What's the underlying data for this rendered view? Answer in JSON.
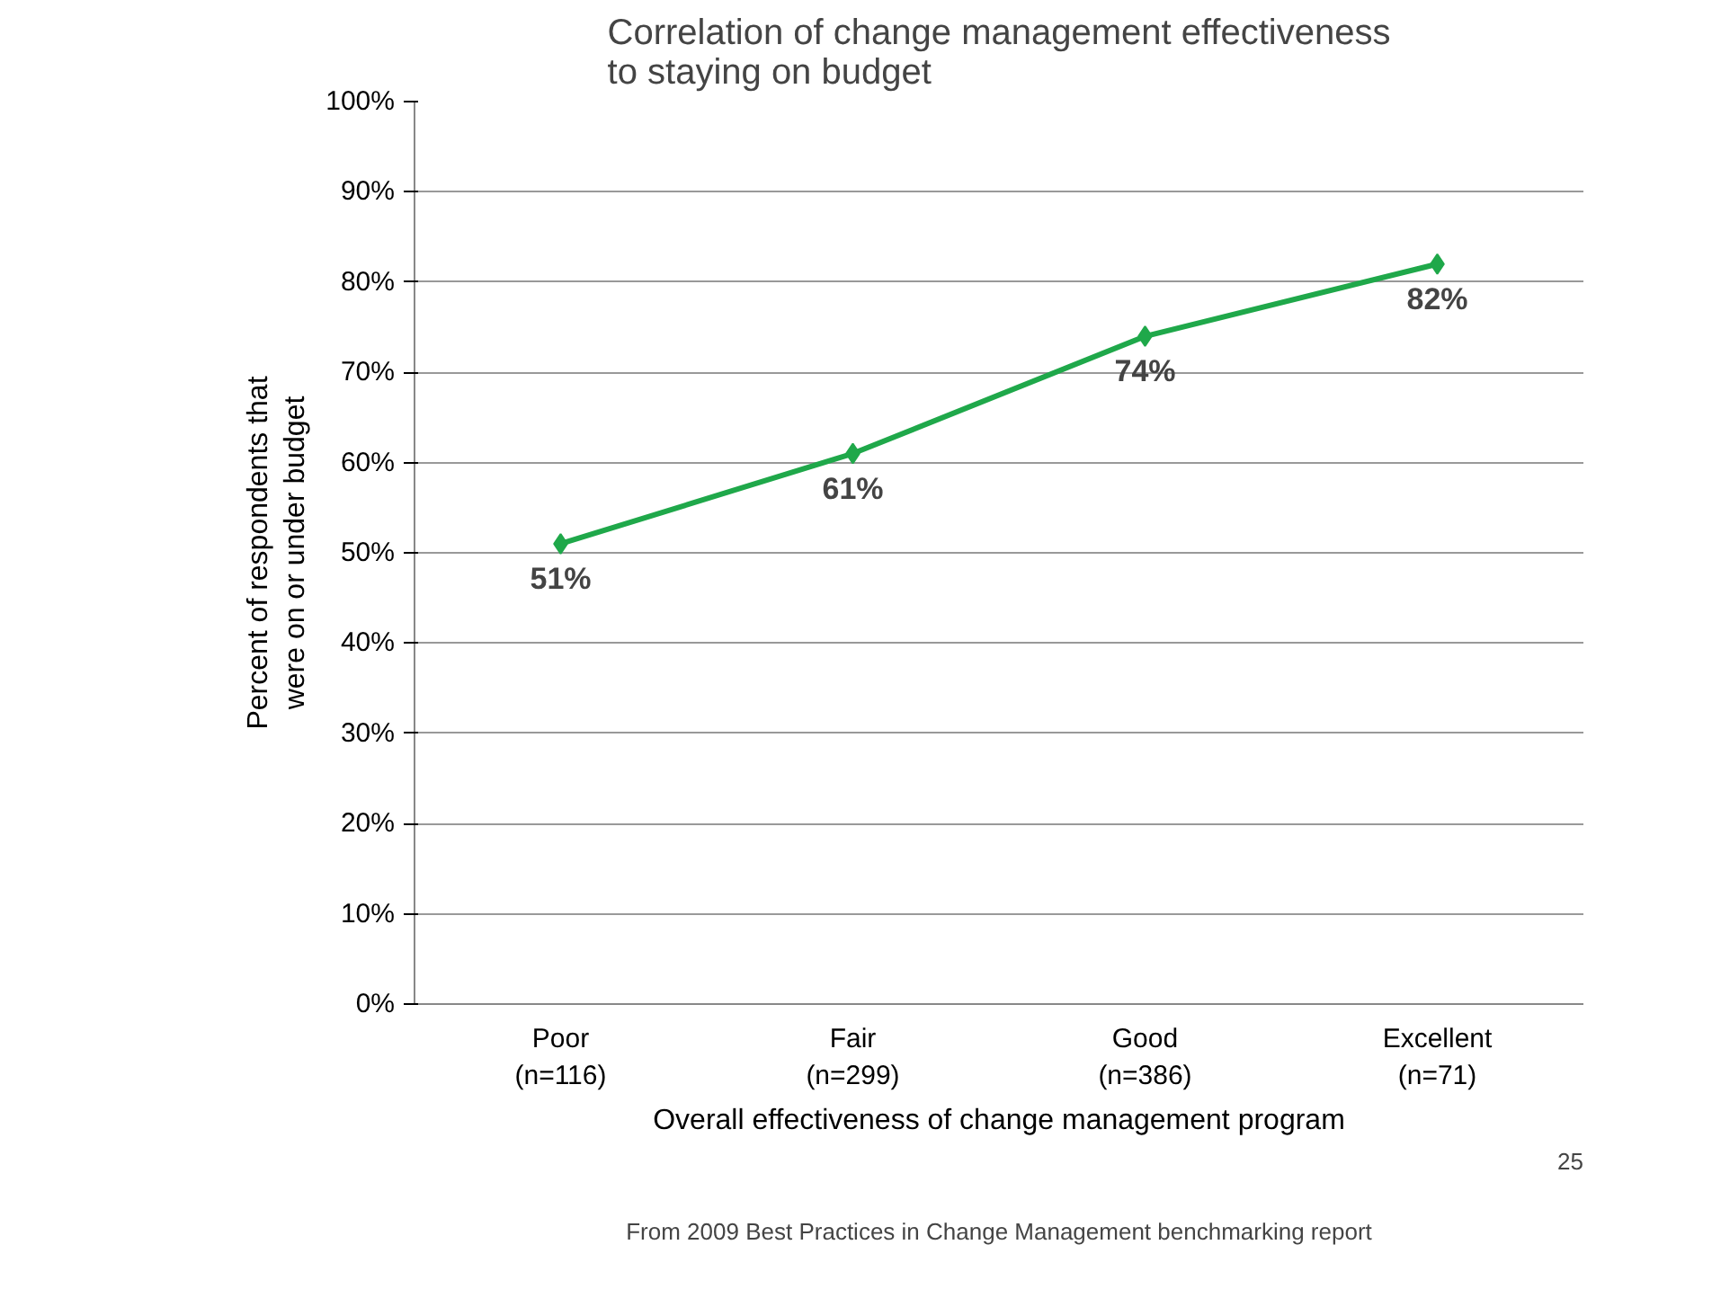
{
  "chart_data": {
    "type": "line",
    "title": "Correlation of change management effectiveness\nto staying on budget",
    "xlabel": "Overall effectiveness of change management program",
    "ylabel": "Percent of respondents that\nwere on or under budget",
    "categories": [
      "Poor\n(n=116)",
      "Fair\n(n=299)",
      "Good\n(n=386)",
      "Excellent\n(n=71)"
    ],
    "series": [
      {
        "color": "#1fa84a",
        "values": [
          51,
          61,
          74,
          82
        ],
        "value_labels": [
          "51%",
          "61%",
          "74%",
          "82%"
        ]
      }
    ],
    "ylim": [
      0,
      100
    ],
    "yticks": [
      {
        "value": 0,
        "label": "0%"
      },
      {
        "value": 10,
        "label": "10%"
      },
      {
        "value": 20,
        "label": "20%"
      },
      {
        "value": 30,
        "label": "30%"
      },
      {
        "value": 40,
        "label": "40%"
      },
      {
        "value": 50,
        "label": "50%"
      },
      {
        "value": 60,
        "label": "60%"
      },
      {
        "value": 70,
        "label": "70%"
      },
      {
        "value": 80,
        "label": "80%"
      },
      {
        "value": 90,
        "label": "90%"
      },
      {
        "value": 100,
        "label": "100%"
      }
    ],
    "grid": "y",
    "marker": "diamond",
    "line_style": "solid",
    "annotations": [
      "From 2009 Best Practices in Change Management benchmarking report",
      "25"
    ]
  }
}
